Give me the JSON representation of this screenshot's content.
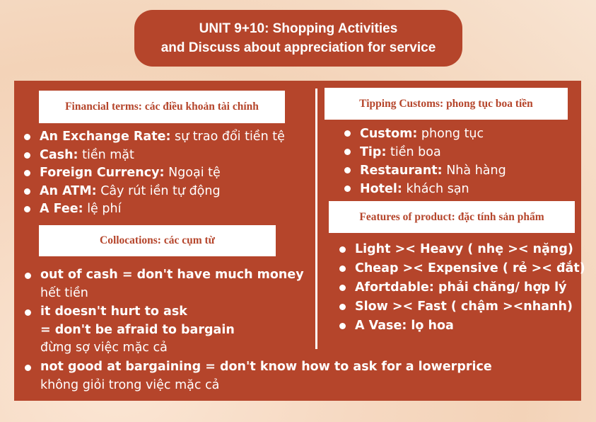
{
  "title": {
    "line1": "UNIT 9+10: Shopping Activities",
    "line2": "and Discuss about appreciation for service"
  },
  "financial": {
    "header": "Financial terms: các điều khoản tài chính",
    "items": [
      {
        "term": "An Exchange Rate:",
        "def": " sự trao đổi tiền tệ"
      },
      {
        "term": "Cash:",
        "def": " tiền mặt"
      },
      {
        "term": "Foreign Currency:",
        "def": " Ngoại tệ"
      },
      {
        "term": "An ATM:",
        "def": " Cây rút iền tự động"
      },
      {
        "term": "A Fee:",
        "def": " lệ phí"
      }
    ]
  },
  "collocations": {
    "header": "Collocations: các cụm từ",
    "items": [
      {
        "en": "out of cash = don't have much money",
        "vi": "hết tiền"
      },
      {
        "en": "it doesn't hurt to ask",
        "en2": "= don't be afraid to bargain",
        "vi": "đừng sợ việc mặc cả"
      },
      {
        "en": "not good at bargaining = don't know how to ask for a lowerprice",
        "vi": "không giỏi trong việc mặc cả"
      }
    ]
  },
  "tipping": {
    "header": "Tipping Customs: phong tục boa tiền",
    "items": [
      {
        "term": "Custom:",
        "def": " phong tục"
      },
      {
        "term": "Tip:",
        "def": " tiền boa"
      },
      {
        "term": "Restaurant:",
        "def": " Nhà hàng"
      },
      {
        "term": "Hotel:",
        "def": " khách sạn"
      }
    ]
  },
  "features": {
    "header": "Features of product: đặc tính sản phẩm",
    "items": [
      "Light >< Heavy ( nhẹ >< nặng)",
      "Cheap >< Expensive ( rẻ >< đắt)",
      "Afortdable: phải chăng/ hợp lý",
      "Slow >< Fast ( chậm ><nhanh)",
      "A Vase: lọ hoa"
    ]
  },
  "colors": {
    "panel": "#b5452b",
    "text": "#ffffff",
    "header_bg": "#ffffff"
  }
}
